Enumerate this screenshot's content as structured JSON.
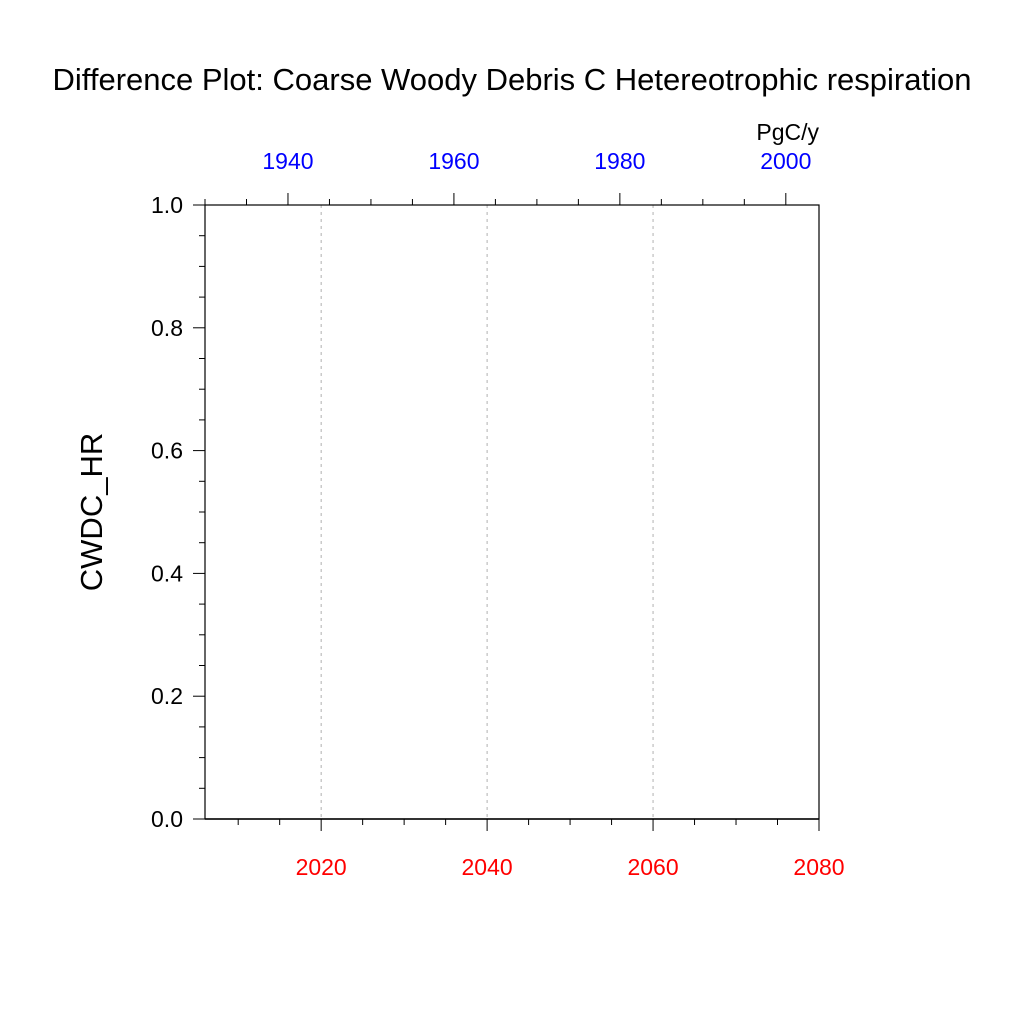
{
  "chart_data": {
    "type": "line",
    "title": "Difference Plot: Coarse Woody Debris C Hetereotrophic respiration",
    "ylabel": "CWDC_HR",
    "units": "PgC/y",
    "ylim": [
      0.0,
      1.0
    ],
    "yticks": [
      "0.0",
      "0.2",
      "0.4",
      "0.6",
      "0.8",
      "1.0"
    ],
    "bottom_axis": {
      "range": [
        2006,
        2080
      ],
      "ticks": [
        "2020",
        "2040",
        "2060",
        "2080"
      ],
      "color": "#ff0000"
    },
    "top_axis": {
      "range": [
        1930,
        2004
      ],
      "ticks": [
        "1940",
        "1960",
        "1980",
        "2000"
      ],
      "color": "#0000ff"
    },
    "grid": "vertical dashed at bottom-axis major ticks",
    "series": [
      {
        "x": [
          2006,
          2080
        ],
        "values": [
          0.0,
          0.0
        ]
      }
    ]
  }
}
